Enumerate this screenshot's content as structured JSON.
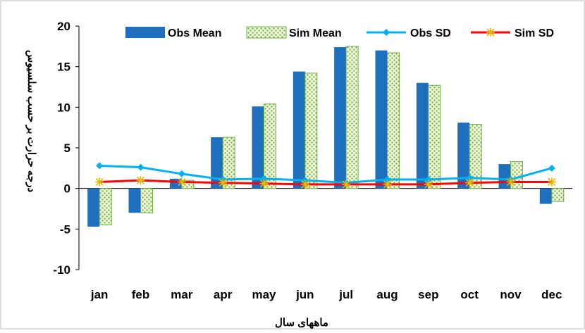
{
  "chart_data": {
    "type": "bar",
    "title": "",
    "xlabel": "ماههای سال",
    "ylabel": "درجه حرارت بر حسب سلسیوس",
    "ylim": [
      -10,
      20
    ],
    "yticks": [
      -10,
      -5,
      0,
      5,
      10,
      15,
      20
    ],
    "grid": false,
    "legend_position": "top",
    "categories": [
      "jan",
      "feb",
      "mar",
      "apr",
      "may",
      "jun",
      "jul",
      "aug",
      "sep",
      "oct",
      "nov",
      "dec"
    ],
    "series": [
      {
        "name": "Obs Mean",
        "type": "bar",
        "color": "#1f6fbf",
        "values": [
          -4.7,
          -3.0,
          1.2,
          6.3,
          10.1,
          14.4,
          17.4,
          17.0,
          13.0,
          8.1,
          3.0,
          -1.9
        ]
      },
      {
        "name": "Sim Mean",
        "type": "bar",
        "color": "#92d050",
        "pattern": "dotted",
        "values": [
          -4.5,
          -3.0,
          1.0,
          6.3,
          10.4,
          14.2,
          17.5,
          16.7,
          12.7,
          7.9,
          3.3,
          -1.6
        ]
      },
      {
        "name": "Obs SD",
        "type": "line",
        "color": "#00b0f0",
        "marker": "diamond",
        "values": [
          2.8,
          2.6,
          1.8,
          1.1,
          1.2,
          1.0,
          0.7,
          1.1,
          1.1,
          1.3,
          1.1,
          2.5
        ]
      },
      {
        "name": "Sim SD",
        "type": "line",
        "color": "#ff0000",
        "marker": "asterisk",
        "values": [
          0.8,
          1.0,
          0.8,
          0.7,
          0.6,
          0.5,
          0.5,
          0.5,
          0.5,
          0.7,
          0.8,
          0.8
        ]
      }
    ]
  }
}
